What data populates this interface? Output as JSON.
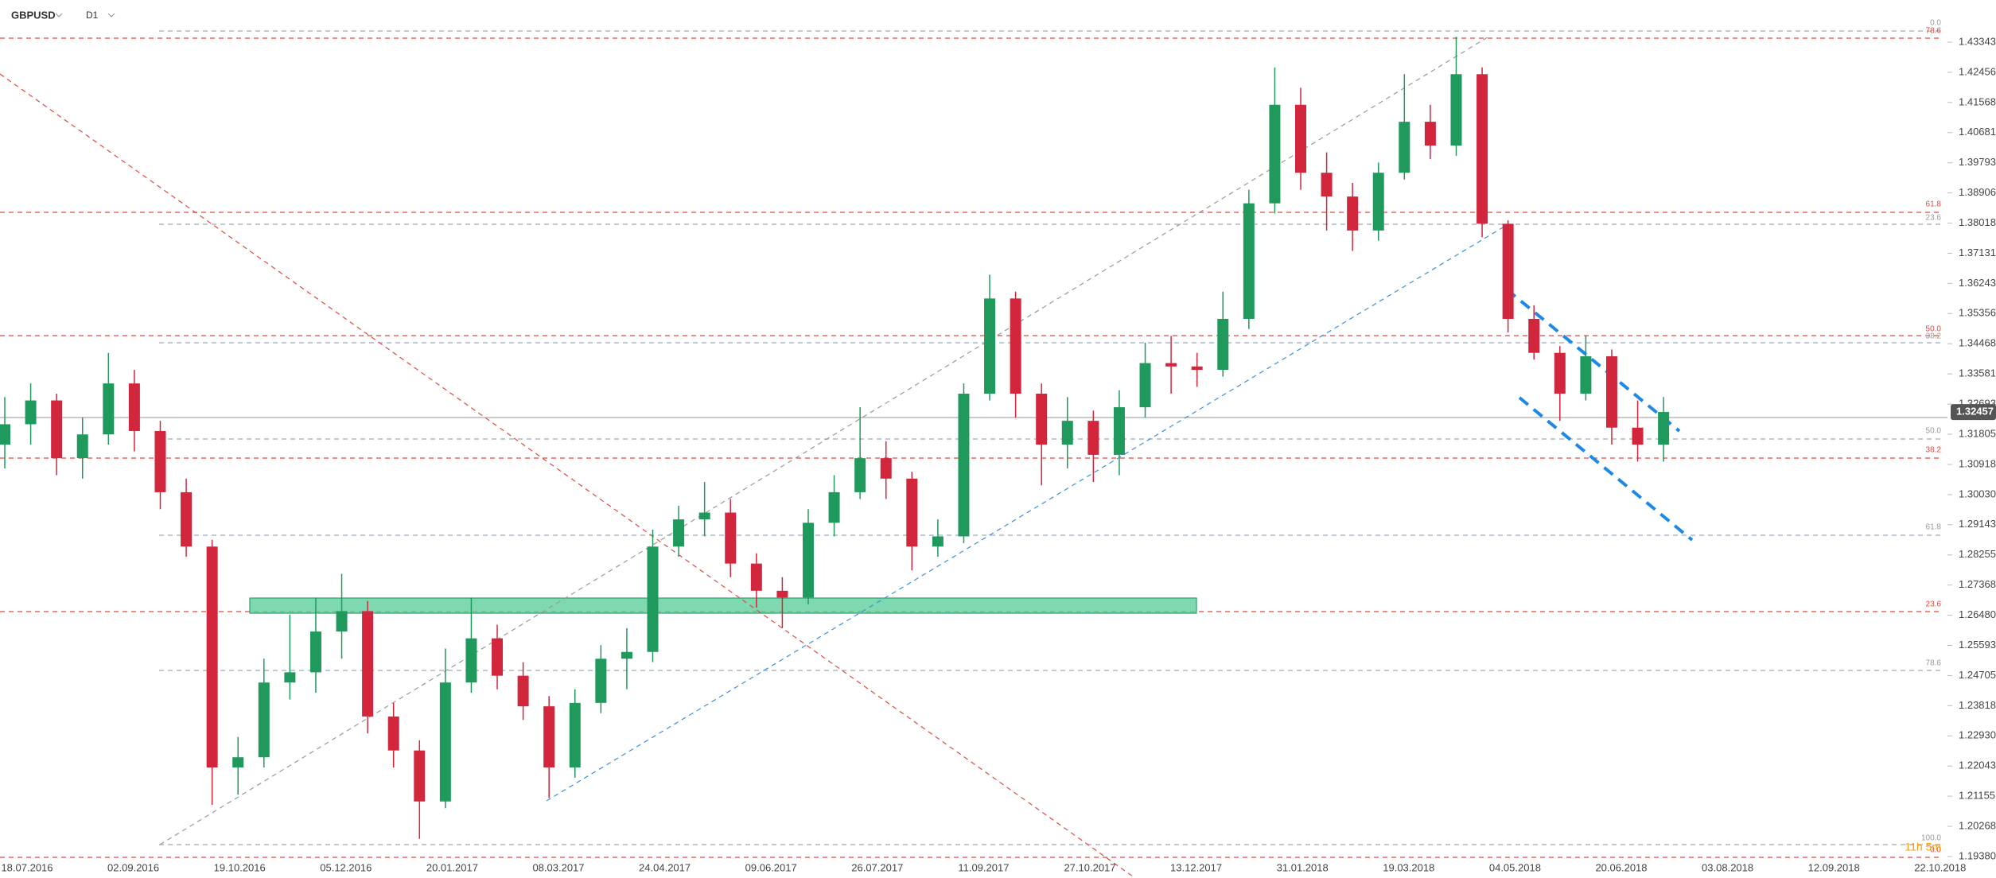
{
  "chart_data": {
    "type": "candlestick",
    "symbol": "GBPUSD",
    "timeframe": "D1",
    "up_color": "#1f9a5c",
    "down_color": "#d2263d",
    "ylim": [
      1.18748,
      1.44583
    ],
    "yticks": [
      1.43343,
      1.42456,
      1.41568,
      1.40681,
      1.39793,
      1.38906,
      1.38018,
      1.37131,
      1.36243,
      1.35356,
      1.34468,
      1.33581,
      1.32693,
      1.31805,
      1.30918,
      {
        "value": 1.3003,
        "label": "1.30030"
      },
      1.29143,
      1.28255,
      1.27368,
      {
        "value": 1.2648,
        "label": "1.26480"
      },
      1.25593,
      1.24705,
      1.23818,
      {
        "value": 1.2293,
        "label": "1.22930"
      },
      1.22043,
      1.21155,
      1.20268,
      {
        "value": 1.1938,
        "label": "1.19380"
      }
    ],
    "last_price": 1.32457,
    "x_labels": [
      "18.07.2016",
      "02.09.2016",
      "19.10.2016",
      "05.12.2016",
      "20.01.2017",
      "08.03.2017",
      "24.04.2017",
      "09.06.2017",
      "26.07.2017",
      "11.09.2017",
      "27.10.2017",
      "13.12.2017",
      "31.01.2018",
      "19.03.2018",
      "04.05.2018",
      "20.06.2018",
      "03.08.2018",
      "12.09.2018",
      "22.10.2018"
    ],
    "annotations": [
      "0.0",
      "78.6",
      "61.8",
      "23.6",
      "50.0",
      "38.2",
      "50.0",
      "38.2",
      "61.8",
      "23.6",
      "78.6",
      "100.0",
      "0.0",
      "11h 5m"
    ],
    "open": [
      1.315,
      1.321,
      1.328,
      1.311,
      1.318,
      1.333,
      1.319,
      1.301,
      1.285,
      1.22,
      1.223,
      1.245,
      1.248,
      1.26,
      1.266,
      1.235,
      1.225,
      1.21,
      1.245,
      1.258,
      1.247,
      1.238,
      1.22,
      1.239,
      1.252,
      1.254,
      1.285,
      1.293,
      1.295,
      1.28,
      1.272,
      1.27,
      1.292,
      1.301,
      1.311,
      1.305,
      1.285,
      1.288,
      1.33,
      1.358,
      1.33,
      1.315,
      1.322,
      1.312,
      1.326,
      1.339,
      1.338,
      1.337,
      1.352,
      1.386,
      1.415,
      1.395,
      1.388,
      1.378,
      1.395,
      1.41,
      1.403,
      1.424,
      1.38,
      1.352,
      1.342,
      1.33,
      1.341,
      1.32,
      1.315
    ],
    "high": [
      1.329,
      1.333,
      1.33,
      1.323,
      1.342,
      1.337,
      1.322,
      1.305,
      1.287,
      1.229,
      1.252,
      1.265,
      1.27,
      1.277,
      1.269,
      1.239,
      1.228,
      1.255,
      1.27,
      1.262,
      1.251,
      1.241,
      1.243,
      1.256,
      1.261,
      1.29,
      1.297,
      1.304,
      1.299,
      1.283,
      1.276,
      1.296,
      1.306,
      1.326,
      1.316,
      1.307,
      1.293,
      1.333,
      1.365,
      1.36,
      1.333,
      1.329,
      1.325,
      1.331,
      1.345,
      1.347,
      1.342,
      1.36,
      1.39,
      1.426,
      1.42,
      1.401,
      1.392,
      1.398,
      1.424,
      1.415,
      1.435,
      1.426,
      1.381,
      1.356,
      1.344,
      1.347,
      1.343,
      1.328,
      1.329
    ],
    "low": [
      1.308,
      1.315,
      1.306,
      1.305,
      1.315,
      1.313,
      1.296,
      1.282,
      1.209,
      1.212,
      1.22,
      1.24,
      1.242,
      1.252,
      1.23,
      1.22,
      1.199,
      1.208,
      1.242,
      1.243,
      1.234,
      1.211,
      1.217,
      1.236,
      1.243,
      1.251,
      1.282,
      1.288,
      1.276,
      1.267,
      1.261,
      1.268,
      1.288,
      1.299,
      1.299,
      1.278,
      1.282,
      1.286,
      1.328,
      1.323,
      1.303,
      1.308,
      1.304,
      1.306,
      1.323,
      1.33,
      1.332,
      1.335,
      1.349,
      1.383,
      1.39,
      1.378,
      1.372,
      1.375,
      1.393,
      1.399,
      1.4,
      1.376,
      1.348,
      1.34,
      1.322,
      1.328,
      1.315,
      1.31,
      1.31
    ],
    "close": [
      1.321,
      1.328,
      1.311,
      1.318,
      1.333,
      1.319,
      1.301,
      1.285,
      1.22,
      1.223,
      1.245,
      1.248,
      1.26,
      1.266,
      1.235,
      1.225,
      1.21,
      1.245,
      1.258,
      1.247,
      1.238,
      1.22,
      1.239,
      1.252,
      1.254,
      1.285,
      1.293,
      1.295,
      1.28,
      1.272,
      1.27,
      1.292,
      1.301,
      1.311,
      1.305,
      1.285,
      1.288,
      1.33,
      1.358,
      1.33,
      1.315,
      1.322,
      1.312,
      1.326,
      1.339,
      1.338,
      1.337,
      1.352,
      1.386,
      1.415,
      1.395,
      1.388,
      1.378,
      1.395,
      1.41,
      1.403,
      1.424,
      1.38,
      1.352,
      1.342,
      1.33,
      1.341,
      1.32,
      1.315,
      1.3246
    ]
  }
}
